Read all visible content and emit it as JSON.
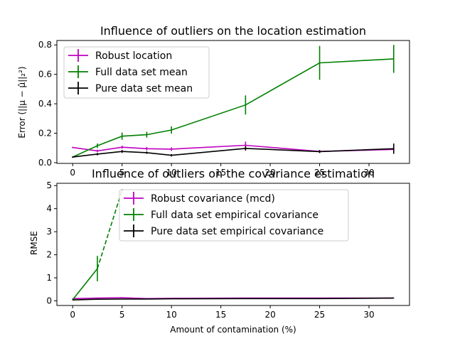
{
  "chart_data": [
    {
      "type": "line",
      "title": "Influence of outliers on the location estimation",
      "xlabel": "",
      "ylabel": "Error (||μ − μ̂||₂²)",
      "xlim": [
        -1.6,
        34.1
      ],
      "ylim": [
        -0.005,
        0.83
      ],
      "xticks": [
        0,
        5,
        10,
        15,
        20,
        25,
        30
      ],
      "yticks": [
        0.0,
        0.2,
        0.4,
        0.6,
        0.8
      ],
      "ytick_labels": [
        "0.0",
        "0.2",
        "0.4",
        "0.6",
        "0.8"
      ],
      "legend_position": "top-left",
      "series": [
        {
          "name": "Robust location",
          "color": "#bf00bf",
          "x": [
            0,
            2.5,
            5,
            7.5,
            10,
            17.5,
            25,
            32.5
          ],
          "y": [
            0.103,
            0.08,
            0.105,
            0.095,
            0.092,
            0.118,
            0.076,
            0.09
          ],
          "err": [
            0.005,
            0.008,
            0.01,
            0.012,
            0.012,
            0.025,
            0.01,
            0.012
          ]
        },
        {
          "name": "Full data set mean",
          "color": "#008000",
          "x": [
            0,
            2.5,
            5,
            7.5,
            10,
            17.5,
            25,
            32.5
          ],
          "y": [
            0.038,
            0.115,
            0.18,
            0.19,
            0.222,
            0.392,
            0.678,
            0.705
          ],
          "err": [
            0.005,
            0.015,
            0.025,
            0.02,
            0.025,
            0.065,
            0.115,
            0.095
          ]
        },
        {
          "name": "Pure data set mean",
          "color": "#000000",
          "x": [
            0,
            2.5,
            5,
            7.5,
            10,
            17.5,
            25,
            32.5
          ],
          "y": [
            0.038,
            0.058,
            0.076,
            0.068,
            0.05,
            0.097,
            0.075,
            0.095
          ],
          "err": [
            0.005,
            0.008,
            0.01,
            0.008,
            0.008,
            0.015,
            0.01,
            0.035
          ]
        }
      ]
    },
    {
      "type": "line",
      "title": "Influence of outliers on the covariance estimation",
      "xlabel": "Amount of contamination (%)",
      "ylabel": "RMSE",
      "xlim": [
        -1.6,
        34.1
      ],
      "ylim": [
        -0.2,
        5.1
      ],
      "xticks": [
        0,
        5,
        10,
        15,
        20,
        25,
        30
      ],
      "yticks": [
        0,
        1,
        2,
        3,
        4,
        5
      ],
      "ytick_labels": [
        "0",
        "1",
        "2",
        "3",
        "4",
        "5"
      ],
      "legend_position": "top-center",
      "series": [
        {
          "name": "Robust covariance (mcd)",
          "color": "#bf00bf",
          "x": [
            0,
            2.5,
            5,
            7.5,
            10,
            17.5,
            25,
            32.5
          ],
          "y": [
            0.1,
            0.12,
            0.14,
            0.1,
            0.11,
            0.12,
            0.12,
            0.12
          ],
          "err": [
            0.01,
            0.01,
            0.02,
            0.01,
            0.01,
            0.01,
            0.01,
            0.01
          ]
        },
        {
          "name": "Full data set empirical covariance",
          "color": "#008000",
          "x": [
            0,
            2.5
          ],
          "y": [
            0.05,
            1.4
          ],
          "err": [
            0.02,
            0.55
          ],
          "dashed_x": [
            2.5,
            5.0
          ],
          "dashed_y": [
            1.4,
            4.8
          ],
          "dashed_endpoint_err": 0.05
        },
        {
          "name": "Pure data set empirical covariance",
          "color": "#000000",
          "x": [
            0,
            2.5,
            5,
            7.5,
            10,
            17.5,
            25,
            32.5
          ],
          "y": [
            0.04,
            0.07,
            0.08,
            0.08,
            0.09,
            0.1,
            0.1,
            0.12
          ],
          "err": [
            0.01,
            0.01,
            0.01,
            0.01,
            0.01,
            0.01,
            0.01,
            0.01
          ]
        }
      ]
    }
  ]
}
